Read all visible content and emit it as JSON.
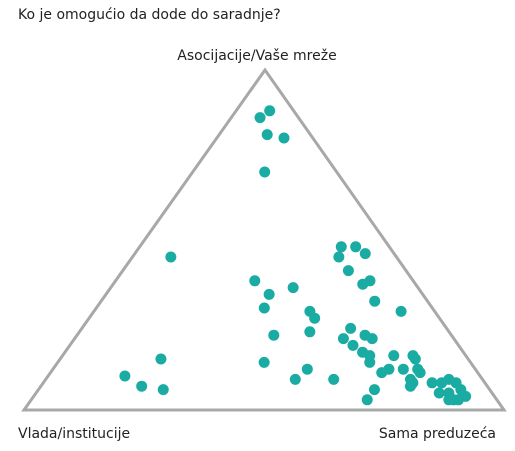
{
  "chart_data": {
    "type": "ternary",
    "title": "Ko je omogućio da dode do saradnje?",
    "axes": [
      "Asocijacije/Vaše mreže",
      "Vlada/institucije",
      "Sama preduzeća"
    ],
    "color": "#1aaba3",
    "values": [
      [
        88,
        5,
        7
      ],
      [
        86,
        8,
        6
      ],
      [
        81,
        9,
        10
      ],
      [
        80,
        6,
        14
      ],
      [
        70,
        15,
        15
      ],
      [
        45,
        47,
        8
      ],
      [
        48,
        10,
        42
      ],
      [
        48,
        7,
        45
      ],
      [
        45,
        12,
        43
      ],
      [
        46,
        6,
        48
      ],
      [
        41,
        12,
        47
      ],
      [
        38,
        33,
        29
      ],
      [
        38,
        9,
        53
      ],
      [
        37,
        11,
        52
      ],
      [
        36,
        26,
        38
      ],
      [
        34,
        32,
        34
      ],
      [
        32,
        11,
        57
      ],
      [
        30,
        35,
        35
      ],
      [
        29,
        26,
        45
      ],
      [
        27,
        26,
        47
      ],
      [
        29,
        7,
        64
      ],
      [
        24,
        20,
        56
      ],
      [
        22,
        37,
        41
      ],
      [
        23,
        29,
        48
      ],
      [
        21,
        23,
        56
      ],
      [
        22,
        18,
        60
      ],
      [
        19,
        22,
        59
      ],
      [
        21,
        17,
        62
      ],
      [
        17,
        21,
        62
      ],
      [
        15,
        64,
        21
      ],
      [
        14,
        43,
        43
      ],
      [
        12,
        35,
        53
      ],
      [
        16,
        20,
        64
      ],
      [
        14,
        21,
        65
      ],
      [
        16,
        15,
        69
      ],
      [
        16,
        11,
        73
      ],
      [
        15,
        11,
        74
      ],
      [
        10,
        74,
        16
      ],
      [
        11,
        20,
        69
      ],
      [
        12,
        18,
        70
      ],
      [
        12,
        15,
        73
      ],
      [
        12,
        12,
        76
      ],
      [
        11,
        12,
        77
      ],
      [
        9,
        39,
        52
      ],
      [
        9,
        31,
        60
      ],
      [
        7,
        72,
        21
      ],
      [
        6,
        68,
        26
      ],
      [
        9,
        15,
        76
      ],
      [
        8,
        15,
        77
      ],
      [
        8,
        11,
        81
      ],
      [
        9,
        7,
        84
      ],
      [
        8,
        9,
        83
      ],
      [
        8,
        6,
        86
      ],
      [
        6,
        24,
        70
      ],
      [
        7,
        16,
        77
      ],
      [
        5,
        11,
        84
      ],
      [
        5,
        9,
        86
      ],
      [
        6,
        6,
        88
      ],
      [
        4,
        6,
        90
      ],
      [
        3,
        9,
        88
      ],
      [
        3,
        10,
        87
      ],
      [
        3,
        27,
        70
      ],
      [
        3,
        8,
        89
      ]
    ]
  }
}
